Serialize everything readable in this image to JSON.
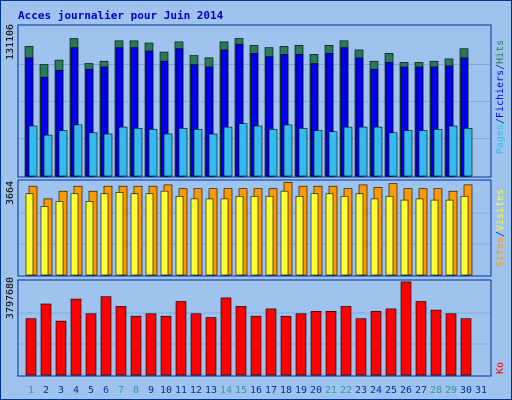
{
  "title": "Acces journalier pour Juin 2014",
  "colors": {
    "background": "#9ec3ee",
    "border": "#003399",
    "title": "#0000cc",
    "grid": "#6699cc",
    "hits": "#2a7a5a",
    "files": "#0000ee",
    "pages": "#33bbee",
    "visits": "#ffff33",
    "sites": "#ff9900",
    "kb": "#ff0000",
    "weekend_label": "#339999",
    "weekday_label": "#003399"
  },
  "labels": {
    "top_max": "131106",
    "mid_max": "3664",
    "bot_max": "3797680",
    "right_top": [
      "Pages",
      "/",
      "Fichiers",
      "/",
      "Hits"
    ],
    "right_mid": [
      "Sites",
      "/",
      "Visites"
    ],
    "right_bot": [
      "Ko"
    ]
  },
  "chart_data": {
    "type": "bar",
    "title": "Acces journalier pour Juin 2014",
    "categories": [
      "1",
      "2",
      "3",
      "4",
      "5",
      "6",
      "7",
      "8",
      "9",
      "10",
      "11",
      "12",
      "13",
      "14",
      "15",
      "16",
      "17",
      "18",
      "19",
      "20",
      "21",
      "22",
      "23",
      "24",
      "25",
      "26",
      "27",
      "28",
      "29",
      "30",
      "31"
    ],
    "weekend_days": [
      "1",
      "7",
      "8",
      "14",
      "15",
      "21",
      "22",
      "28",
      "29"
    ],
    "panels": [
      {
        "name": "Pages / Fichiers / Hits",
        "ylim": [
          0,
          131106
        ],
        "series": [
          {
            "name": "Hits",
            "values": [
              114000,
              98000,
              102000,
              121000,
              99000,
              101000,
              119000,
              119000,
              117000,
              109000,
              118000,
              106000,
              104000,
              118000,
              121000,
              115000,
              113000,
              114000,
              115000,
              107000,
              115000,
              119000,
              111000,
              101000,
              108000,
              100000,
              100000,
              101000,
              103000,
              112000,
              0
            ]
          },
          {
            "name": "Fichiers",
            "values": [
              104000,
              87000,
              93000,
              113000,
              94000,
              96000,
              113000,
              113000,
              110000,
              101000,
              112000,
              98000,
              96000,
              111000,
              116000,
              108000,
              105000,
              107000,
              107000,
              99000,
              108000,
              113000,
              104000,
              94000,
              100000,
              96000,
              96000,
              96000,
              97000,
              104000,
              0
            ]
          },
          {
            "name": "Pages",
            "values": [
              44000,
              36000,
              40000,
              45000,
              38000,
              37000,
              43000,
              42000,
              41000,
              37000,
              42000,
              41000,
              37000,
              43000,
              46000,
              44000,
              41000,
              45000,
              42000,
              40000,
              39000,
              43000,
              43000,
              43000,
              38000,
              40000,
              40000,
              41000,
              44000,
              42000,
              0
            ]
          }
        ]
      },
      {
        "name": "Sites / Visites",
        "ylim": [
          0,
          3664
        ],
        "series": [
          {
            "name": "Sites",
            "values": [
              3500,
              3000,
              3300,
              3500,
              3300,
              3500,
              3500,
              3500,
              3500,
              3550,
              3400,
              3400,
              3400,
              3400,
              3400,
              3400,
              3400,
              3650,
              3500,
              3500,
              3500,
              3400,
              3550,
              3450,
              3600,
              3400,
              3400,
              3400,
              3300,
              3550,
              0
            ]
          },
          {
            "name": "Visites",
            "values": [
              3200,
              2700,
              2900,
              3200,
              2900,
              3200,
              3250,
              3200,
              3200,
              3300,
              3100,
              3000,
              3000,
              3000,
              3100,
              3100,
              3100,
              3300,
              3100,
              3200,
              3200,
              3100,
              3200,
              3000,
              3100,
              2950,
              3000,
              2950,
              2950,
              3100,
              0
            ]
          }
        ]
      },
      {
        "name": "Ko",
        "ylim": [
          0,
          3797680
        ],
        "series": [
          {
            "name": "Ko",
            "values": [
              2300000,
              2900000,
              2200000,
              3100000,
              2500000,
              3200000,
              2800000,
              2400000,
              2500000,
              2400000,
              3000000,
              2500000,
              2350000,
              3150000,
              2800000,
              2400000,
              2700000,
              2400000,
              2500000,
              2600000,
              2600000,
              2800000,
              2300000,
              2600000,
              2700000,
              3800000,
              3000000,
              2650000,
              2500000,
              2300000,
              0
            ]
          }
        ]
      }
    ]
  }
}
